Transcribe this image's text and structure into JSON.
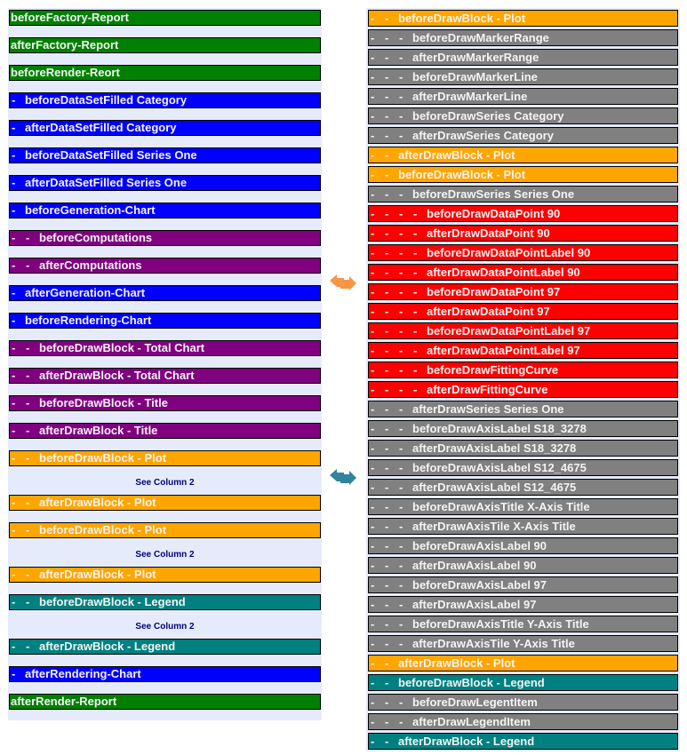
{
  "colors": {
    "green": "#008000",
    "blue": "#0000ff",
    "purple": "#800080",
    "orange": "#ffa500",
    "teal": "#008080",
    "gray": "#808080",
    "red": "#ff0000"
  },
  "left": [
    {
      "label": "beforeFactory-Report",
      "level": 0,
      "color": "green"
    },
    {
      "label": "afterFactory-Report",
      "level": 0,
      "color": "green"
    },
    {
      "label": "beforeRender-Reort",
      "level": 0,
      "color": "green"
    },
    {
      "label": "beforeDataSetFilled Category",
      "level": 1,
      "color": "blue"
    },
    {
      "label": "afterDataSetFilled Category",
      "level": 1,
      "color": "blue"
    },
    {
      "label": "beforeDataSetFilled Series One",
      "level": 1,
      "color": "blue"
    },
    {
      "label": "afterDataSetFilled Series One",
      "level": 1,
      "color": "blue"
    },
    {
      "label": "beforeGeneration-Chart",
      "level": 1,
      "color": "blue"
    },
    {
      "label": "beforeComputations",
      "level": 2,
      "color": "purple"
    },
    {
      "label": "afterComputations",
      "level": 2,
      "color": "purple"
    },
    {
      "label": "afterGeneration-Chart",
      "level": 1,
      "color": "blue"
    },
    {
      "label": "beforeRendering-Chart",
      "level": 1,
      "color": "blue"
    },
    {
      "label": "beforeDrawBlock - Total Chart",
      "level": 2,
      "color": "purple"
    },
    {
      "label": "afterDrawBlock - Total Chart",
      "level": 2,
      "color": "purple"
    },
    {
      "label": "beforeDrawBlock - Title",
      "level": 2,
      "color": "purple"
    },
    {
      "label": "afterDrawBlock - Title",
      "level": 2,
      "color": "purple"
    },
    {
      "label": "beforeDrawBlock - Plot",
      "level": 2,
      "color": "orange"
    },
    {
      "see": "See Column 2"
    },
    {
      "label": "afterDrawBlock - Plot",
      "level": 2,
      "color": "orange"
    },
    {
      "label": "beforeDrawBlock - Plot",
      "level": 2,
      "color": "orange"
    },
    {
      "see": "See Column 2"
    },
    {
      "label": "afterDrawBlock - Plot",
      "level": 2,
      "color": "orange"
    },
    {
      "label": "beforeDrawBlock - Legend",
      "level": 2,
      "color": "teal"
    },
    {
      "see": "See Column 2"
    },
    {
      "label": "afterDrawBlock - Legend",
      "level": 2,
      "color": "teal"
    },
    {
      "label": "afterRendering-Chart",
      "level": 1,
      "color": "blue"
    },
    {
      "label": "afterRender-Report",
      "level": 0,
      "color": "green"
    }
  ],
  "right": [
    {
      "label": "beforeDrawBlock - Plot",
      "level": 2,
      "color": "orange"
    },
    {
      "label": "beforeDrawMarkerRange",
      "level": 3,
      "color": "gray"
    },
    {
      "label": "afterDrawMarkerRange",
      "level": 3,
      "color": "gray"
    },
    {
      "label": "beforeDrawMarkerLine",
      "level": 3,
      "color": "gray"
    },
    {
      "label": "afterDrawMarkerLine",
      "level": 3,
      "color": "gray"
    },
    {
      "label": "beforeDrawSeries Category",
      "level": 3,
      "color": "gray"
    },
    {
      "label": "afterDrawSeries Category",
      "level": 3,
      "color": "gray"
    },
    {
      "label": "afterDrawBlock - Plot",
      "level": 2,
      "color": "orange"
    },
    {
      "label": "beforeDrawBlock - Plot",
      "level": 2,
      "color": "orange"
    },
    {
      "label": "beforeDrawSeries Series One",
      "level": 3,
      "color": "gray"
    },
    {
      "label": "beforeDrawDataPoint 90",
      "level": 4,
      "color": "red"
    },
    {
      "label": "afterDrawDataPoint 90",
      "level": 4,
      "color": "red"
    },
    {
      "label": "beforeDrawDataPointLabel 90",
      "level": 4,
      "color": "red"
    },
    {
      "label": "afterDrawDataPointLabel 90",
      "level": 4,
      "color": "red"
    },
    {
      "label": "beforeDrawDataPoint 97",
      "level": 4,
      "color": "red"
    },
    {
      "label": "afterDrawDataPoint 97",
      "level": 4,
      "color": "red"
    },
    {
      "label": "beforeDrawDataPointLabel 97",
      "level": 4,
      "color": "red"
    },
    {
      "label": "afterDrawDataPointLabel 97",
      "level": 4,
      "color": "red"
    },
    {
      "label": "beforeDrawFittingCurve",
      "level": 4,
      "color": "red"
    },
    {
      "label": "afterDrawFittingCurve",
      "level": 4,
      "color": "red"
    },
    {
      "label": "afterDrawSeries Series One",
      "level": 3,
      "color": "gray"
    },
    {
      "label": "beforeDrawAxisLabel S18_3278",
      "level": 3,
      "color": "gray"
    },
    {
      "label": "afterDrawAxisLabel S18_3278",
      "level": 3,
      "color": "gray"
    },
    {
      "label": "beforeDrawAxisLabel S12_4675",
      "level": 3,
      "color": "gray"
    },
    {
      "label": "afterDrawAxisLabel S12_4675",
      "level": 3,
      "color": "gray"
    },
    {
      "label": "beforeDrawAxisTitle X-Axis Title",
      "level": 3,
      "color": "gray"
    },
    {
      "label": "afterDrawAxisTile X-Axis Title",
      "level": 3,
      "color": "gray"
    },
    {
      "label": "beforeDrawAxisLabel 90",
      "level": 3,
      "color": "gray"
    },
    {
      "label": "afterDrawAxisLabel 90",
      "level": 3,
      "color": "gray"
    },
    {
      "label": "beforeDrawAxisLabel 97",
      "level": 3,
      "color": "gray"
    },
    {
      "label": "afterDrawAxisLabel 97",
      "level": 3,
      "color": "gray"
    },
    {
      "label": "beforeDrawAxisTitle Y-Axis Title",
      "level": 3,
      "color": "gray"
    },
    {
      "label": "afterDrawAxisTile Y-Axis Title",
      "level": 3,
      "color": "gray"
    },
    {
      "label": "afterDrawBlock - Plot",
      "level": 2,
      "color": "orange"
    },
    {
      "label": "beforeDrawBlock - Legend",
      "level": 2,
      "color": "teal"
    },
    {
      "label": "beforeDrawLegentItem",
      "level": 3,
      "color": "gray"
    },
    {
      "label": "afterDrawLegendItem",
      "level": 3,
      "color": "gray"
    },
    {
      "label": "afterDrawBlock - Legend",
      "level": 2,
      "color": "teal"
    }
  ],
  "arrows": [
    {
      "icon": "double-arrow-icon",
      "color": "#f79646"
    },
    {
      "icon": "double-arrow-icon",
      "color": "#31849b"
    }
  ]
}
